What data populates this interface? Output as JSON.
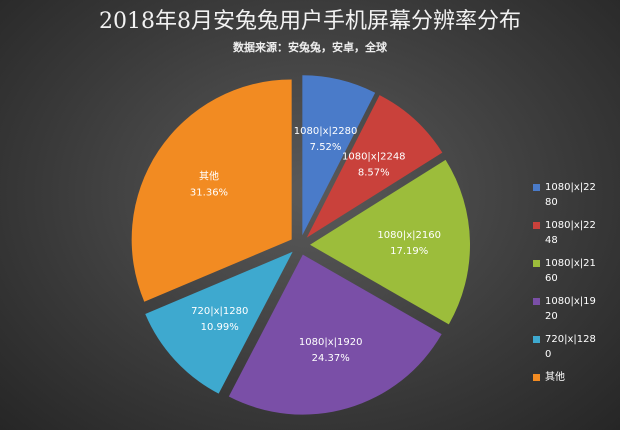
{
  "chart_data": {
    "type": "pie",
    "title": "2018年8月安兔兔用户手机屏幕分辨率分布",
    "subtitle": "数据来源：安兔兔，安卓，全球",
    "categories": [
      "1080|x|2280",
      "1080|x|2248",
      "1080|x|2160",
      "1080|x|1920",
      "720|x|1280",
      "其他"
    ],
    "values": [
      7.52,
      8.57,
      17.19,
      24.37,
      10.99,
      31.36
    ],
    "value_labels": [
      "7.52%",
      "8.57%",
      "17.19%",
      "24.37%",
      "10.99%",
      "31.36%"
    ],
    "colors": [
      "#4a7bc9",
      "#c9413b",
      "#9cbd3b",
      "#7a4fa7",
      "#3ea9cf",
      "#f28b22"
    ],
    "legend": "right"
  }
}
